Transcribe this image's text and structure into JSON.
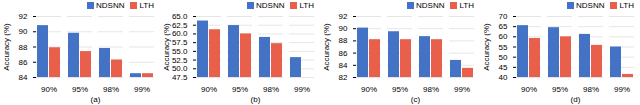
{
  "chart_data": [
    {
      "type": "bar",
      "xlabel": "(a)",
      "ylabel": "Accuracy (%)",
      "categories": [
        "90%",
        "95%",
        "98%",
        "99%"
      ],
      "series": [
        {
          "name": "NDSNN",
          "color": "#4472C4",
          "values": [
            90.8,
            89.8,
            87.8,
            84.5
          ]
        },
        {
          "name": "LTH",
          "color": "#E8604C",
          "values": [
            87.9,
            87.4,
            86.3,
            84.5
          ]
        }
      ],
      "ylim": [
        84,
        92
      ],
      "yticks": [
        84,
        86,
        88,
        90,
        92
      ],
      "grid": true,
      "legend": "upper right"
    },
    {
      "type": "bar",
      "xlabel": "(b)",
      "ylabel": "Accuracy (%)",
      "categories": [
        "90%",
        "95%",
        "98%",
        "99%"
      ],
      "series": [
        {
          "name": "NDSNN",
          "color": "#4472C4",
          "values": [
            63.7,
            62.4,
            59.0,
            53.2
          ]
        },
        {
          "name": "LTH",
          "color": "#E8604C",
          "values": [
            61.2,
            60.0,
            57.2,
            47.5
          ]
        }
      ],
      "ylim": [
        47.5,
        65.0
      ],
      "yticks": [
        47.5,
        {
          "value": 50,
          "label": "50.0"
        },
        52.5,
        {
          "value": 55,
          "label": "55.0"
        },
        57.5,
        {
          "value": 60,
          "label": "60.0"
        },
        62.5,
        {
          "value": 65,
          "label": "65.0"
        }
      ],
      "grid": true,
      "legend": "upper right"
    },
    {
      "type": "bar",
      "xlabel": "(c)",
      "ylabel": "Accuracy (%)",
      "categories": [
        "90%",
        "95%",
        "98%",
        "99%"
      ],
      "series": [
        {
          "name": "NDSNN",
          "color": "#4472C4",
          "values": [
            90.1,
            89.5,
            88.7,
            84.8
          ]
        },
        {
          "name": "LTH",
          "color": "#E8604C",
          "values": [
            88.2,
            88.2,
            88.2,
            83.5
          ]
        }
      ],
      "ylim": [
        82,
        92
      ],
      "yticks": [
        82,
        84,
        86,
        88,
        90,
        92
      ],
      "grid": true,
      "legend": "upper right"
    },
    {
      "type": "bar",
      "xlabel": "(d)",
      "ylabel": "Accuracy (%)",
      "categories": [
        "90%",
        "95%",
        "98%",
        "99%"
      ],
      "series": [
        {
          "name": "NDSNN",
          "color": "#4472C4",
          "values": [
            65.5,
            64.5,
            61.2,
            55.0
          ]
        },
        {
          "name": "LTH",
          "color": "#E8604C",
          "values": [
            59.2,
            60.0,
            55.8,
            41.5
          ]
        }
      ],
      "ylim": [
        40,
        70
      ],
      "yticks": [
        40,
        45,
        50,
        55,
        60,
        65,
        70
      ],
      "grid": true,
      "legend": "upper right"
    }
  ]
}
